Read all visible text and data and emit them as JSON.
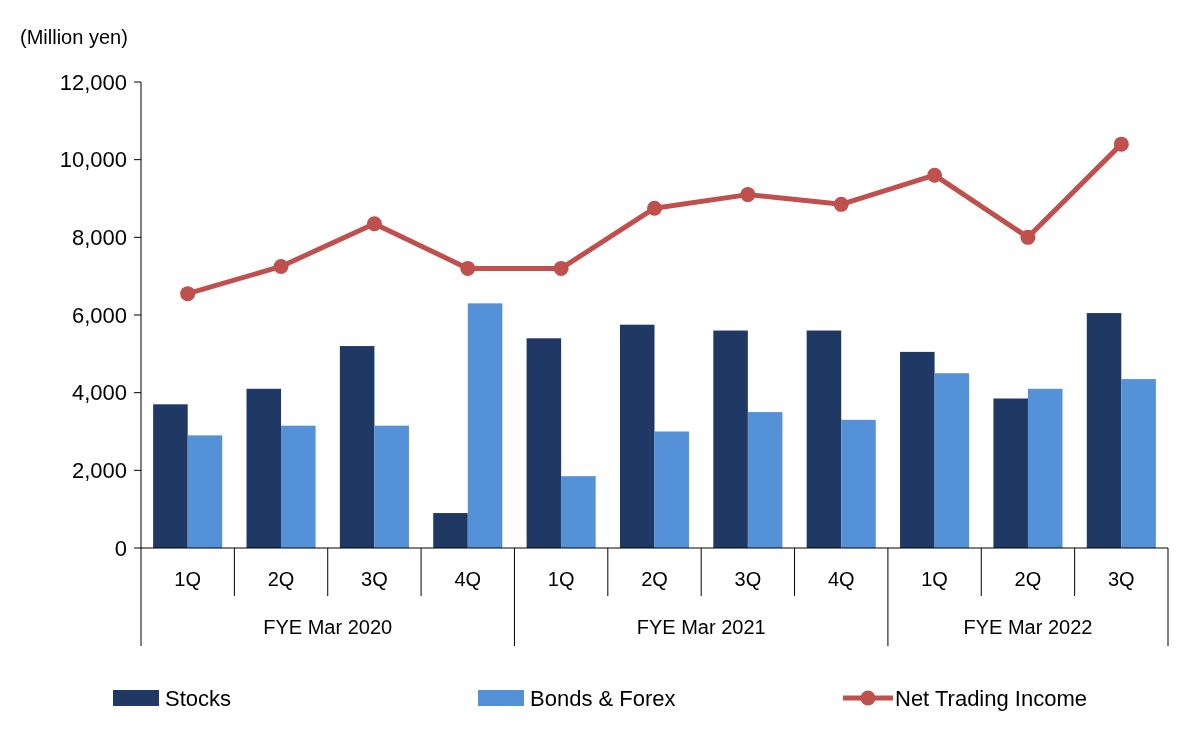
{
  "chart_data": {
    "type": "bar",
    "ylabel": "(Million yen)",
    "categories": [
      "1Q",
      "2Q",
      "3Q",
      "4Q",
      "1Q",
      "2Q",
      "3Q",
      "4Q",
      "1Q",
      "2Q",
      "3Q"
    ],
    "annotations": [
      "FYE Mar 2020",
      "FYE Mar 2021",
      "FYE Mar 2022"
    ],
    "series": [
      {
        "name": "Stocks",
        "color": "#1f3864",
        "values": [
          3700,
          4100,
          5200,
          900,
          5400,
          5750,
          5600,
          5600,
          5050,
          3850,
          6050
        ]
      },
      {
        "name": "Bonds & Forex",
        "color": "#5591d6",
        "values": [
          2900,
          3150,
          3150,
          6300,
          1850,
          3000,
          3500,
          3300,
          4500,
          4100,
          4350
        ]
      },
      {
        "name": "Net Trading Income",
        "type": "line",
        "color": "#c0504d",
        "marker": "circle",
        "values": [
          6550,
          7250,
          8350,
          7200,
          7200,
          8750,
          9100,
          8850,
          9600,
          8000,
          10400
        ]
      }
    ],
    "ylim": [
      0,
      12000
    ],
    "yticks": [
      0,
      {
        "value": 2000,
        "label": "2,000"
      },
      {
        "value": 4000,
        "label": "4,000"
      },
      {
        "value": 6000,
        "label": "6,000"
      },
      {
        "value": 8000,
        "label": "8,000"
      },
      {
        "value": 10000,
        "label": "10,000"
      },
      {
        "value": 12000,
        "label": "12,000"
      }
    ],
    "grid": false,
    "legend": "bottom"
  }
}
